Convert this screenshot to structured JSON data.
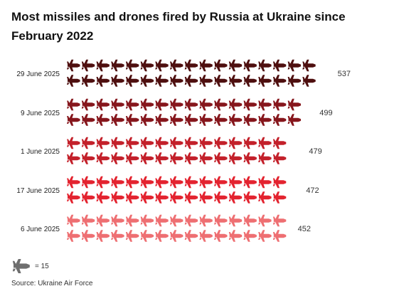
{
  "title": "Most missiles and drones fired by Russia at Ukraine since February 2022",
  "source": "Source: Ukraine Air Force",
  "key": {
    "icon": "plane-icon",
    "label": "= 15",
    "units_per_icon": 15,
    "color": "#6e6e6e"
  },
  "chart_data": {
    "type": "pictogram",
    "title": "Most missiles and drones fired by Russia at Ukraine since February 2022",
    "categories": [
      "29 June 2025",
      "9 June 2025",
      "1 June 2025",
      "17 June 2025",
      "6 June 2025"
    ],
    "values": [
      537,
      499,
      479,
      472,
      452
    ],
    "units_per_icon": 15,
    "colors": [
      "#4e0f0f",
      "#86161c",
      "#c3202a",
      "#e3232f",
      "#ee6f72"
    ],
    "xlabel": "",
    "ylabel": ""
  }
}
